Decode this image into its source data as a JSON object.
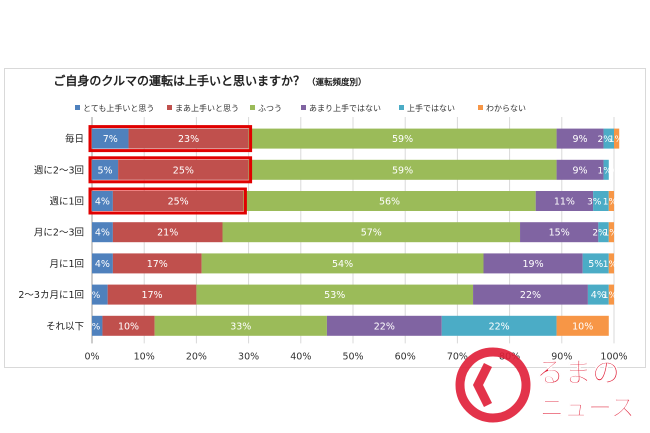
{
  "chart_data": {
    "type": "bar",
    "stacked": true,
    "horizontal": true,
    "title": "ご自身のクルマの運転は上手いと思いますか？",
    "subtitle": "（運転頻度別）",
    "categories": [
      "毎日",
      "週に2～3回",
      "週に1回",
      "月に2～3回",
      "月に1回",
      "2～3カ月に1回",
      "それ以下"
    ],
    "series": [
      {
        "name": "とても上手いと思う",
        "color": "#4f81bd",
        "values": [
          7,
          5,
          4,
          4,
          4,
          3,
          2
        ]
      },
      {
        "name": "まあ上手いと思う",
        "color": "#c0504d",
        "values": [
          23,
          25,
          25,
          21,
          17,
          17,
          10
        ]
      },
      {
        "name": "ふつう",
        "color": "#9bbb59",
        "values": [
          59,
          59,
          56,
          57,
          54,
          53,
          33
        ]
      },
      {
        "name": "あまり上手ではない",
        "color": "#8064a2",
        "values": [
          9,
          9,
          11,
          15,
          19,
          22,
          22
        ]
      },
      {
        "name": "上手ではない",
        "color": "#4bacc6",
        "values": [
          2,
          1,
          3,
          2,
          5,
          4,
          22
        ]
      },
      {
        "name": "わからない",
        "color": "#f79646",
        "values": [
          1,
          0,
          1,
          1,
          1,
          1,
          10
        ]
      }
    ],
    "xlim": [
      0,
      100
    ],
    "x_ticks": [
      "0%",
      "10%",
      "20%",
      "30%",
      "40%",
      "50%",
      "60%",
      "70%",
      "80%",
      "90%",
      "100%"
    ],
    "value_suffix": "%",
    "highlighted_rows": [
      "毎日",
      "週に2～3回",
      "週に1回"
    ],
    "highlight_color": "#e00000",
    "legend_position": "top"
  },
  "logo": {
    "line1": "るまの",
    "line2": "ニュース",
    "color": "#e01e37"
  }
}
